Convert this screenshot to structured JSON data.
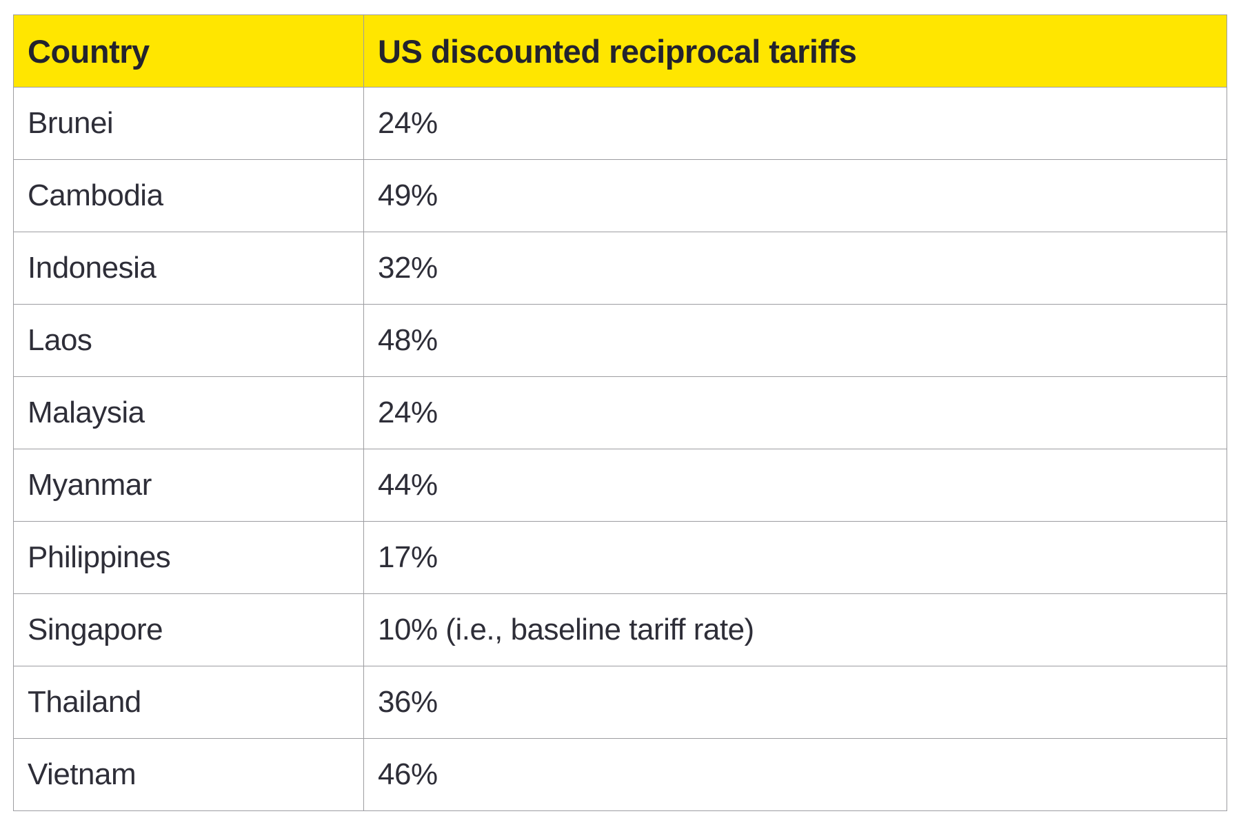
{
  "table": {
    "header": {
      "country": "Country",
      "tariff": "US discounted reciprocal tariffs"
    },
    "rows": [
      {
        "country": "Brunei",
        "tariff": "24%"
      },
      {
        "country": "Cambodia",
        "tariff": "49%"
      },
      {
        "country": "Indonesia",
        "tariff": "32%"
      },
      {
        "country": "Laos",
        "tariff": "48%"
      },
      {
        "country": "Malaysia",
        "tariff": "24%"
      },
      {
        "country": "Myanmar",
        "tariff": "44%"
      },
      {
        "country": "Philippines",
        "tariff": "17%"
      },
      {
        "country": "Singapore",
        "tariff": "10% (i.e., baseline tariff rate)"
      },
      {
        "country": "Thailand",
        "tariff": "36%"
      },
      {
        "country": "Vietnam",
        "tariff": "46%"
      }
    ],
    "colors": {
      "header_bg": "#ffe600",
      "header_text": "#23232e",
      "body_text": "#2e2e38",
      "border": "#9c9ca0",
      "page_bg": "#ffffff"
    }
  },
  "chart_data": {
    "type": "table",
    "title": "US discounted reciprocal tariffs",
    "columns": [
      "Country",
      "US discounted reciprocal tariffs"
    ],
    "categories": [
      "Brunei",
      "Cambodia",
      "Indonesia",
      "Laos",
      "Malaysia",
      "Myanmar",
      "Philippines",
      "Singapore",
      "Thailand",
      "Vietnam"
    ],
    "values": [
      24,
      49,
      32,
      48,
      24,
      44,
      17,
      10,
      36,
      46
    ],
    "value_labels": [
      "24%",
      "49%",
      "32%",
      "48%",
      "24%",
      "44%",
      "17%",
      "10% (i.e., baseline tariff rate)",
      "36%",
      "46%"
    ],
    "value_unit": "%",
    "notes": "Singapore value is the baseline tariff rate"
  }
}
